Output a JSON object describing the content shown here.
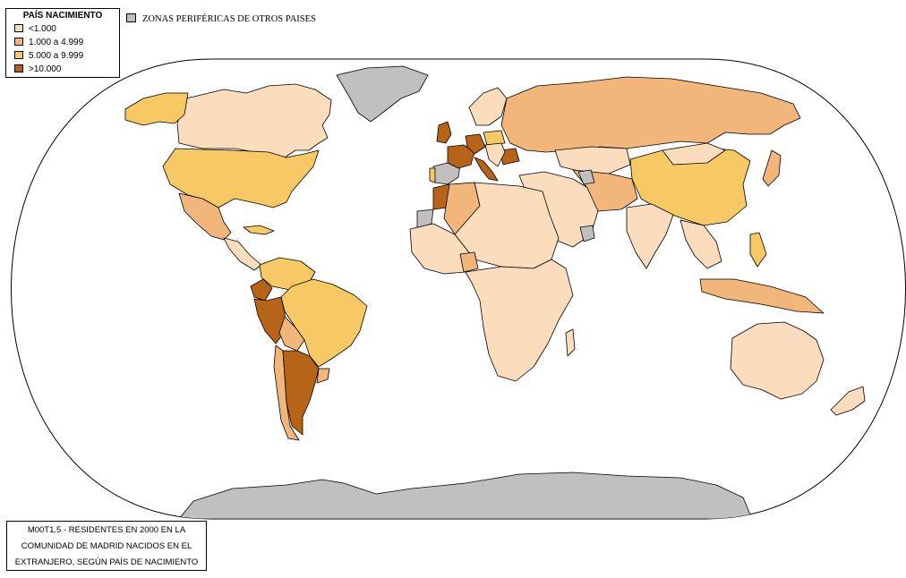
{
  "legend": {
    "title": "PAÍS NACIMIENTO",
    "classes": [
      {
        "label": "<1.000",
        "color": "#fbdcbc"
      },
      {
        "label": "1.000 a 4.999",
        "color": "#f2b57a"
      },
      {
        "label": "5.000 a 9.999",
        "color": "#f7c964"
      },
      {
        "label": ">10.000",
        "color": "#b86418"
      }
    ]
  },
  "peripheral": {
    "label": "ZONAS PERIFÉRICAS DE OTROS PAISES",
    "color": "#c0c0c0"
  },
  "caption": {
    "line1": "M00T1.5 - RESIDENTES EN 2000 EN LA",
    "line2": "COMUNIDAD DE MADRID NACIDOS EN EL",
    "line3": "EXTRANJERO, SEGÚN PAÍS DE NACIMIENTO"
  },
  "regions": [
    {
      "region": "Alaska y Canadá",
      "class": "<1.000"
    },
    {
      "region": "Groenlandia",
      "class": "peripheral"
    },
    {
      "region": "Estados Unidos",
      "class": "5.000 a 9.999"
    },
    {
      "region": "México",
      "class": "1.000 a 4.999"
    },
    {
      "region": "Cuba",
      "class": "5.000 a 9.999"
    },
    {
      "region": "Colombia",
      "class": "5.000 a 9.999"
    },
    {
      "region": "Venezuela",
      "class": "5.000 a 9.999"
    },
    {
      "region": "Brasil",
      "class": "5.000 a 9.999"
    },
    {
      "region": "Ecuador",
      "class": ">10.000"
    },
    {
      "region": "Perú",
      "class": ">10.000"
    },
    {
      "region": "Bolivia",
      "class": "1.000 a 4.999"
    },
    {
      "region": "Argentina",
      "class": ">10.000"
    },
    {
      "region": "Chile",
      "class": "1.000 a 4.999"
    },
    {
      "region": "Uruguay",
      "class": "1.000 a 4.999"
    },
    {
      "region": "Paraguay",
      "class": "1.000 a 4.999"
    },
    {
      "region": "España",
      "class": "peripheral"
    },
    {
      "region": "Portugal",
      "class": "5.000 a 9.999"
    },
    {
      "region": "Francia",
      "class": ">10.000"
    },
    {
      "region": "Alemania",
      "class": ">10.000"
    },
    {
      "region": "Reino Unido",
      "class": ">10.000"
    },
    {
      "region": "Italia",
      "class": ">10.000"
    },
    {
      "region": "Polonia",
      "class": "5.000 a 9.999"
    },
    {
      "region": "Rumanía",
      "class": ">10.000"
    },
    {
      "region": "Marruecos",
      "class": ">10.000"
    },
    {
      "region": "Rusia",
      "class": "1.000 a 4.999"
    },
    {
      "region": "China",
      "class": "5.000 a 9.999"
    },
    {
      "region": "Filipinas",
      "class": "5.000 a 9.999"
    },
    {
      "region": "Guinea Ecuatorial",
      "class": "1.000 a 4.999"
    },
    {
      "region": "Australia",
      "class": "<1.000"
    },
    {
      "region": "Antártida",
      "class": "peripheral"
    }
  ]
}
